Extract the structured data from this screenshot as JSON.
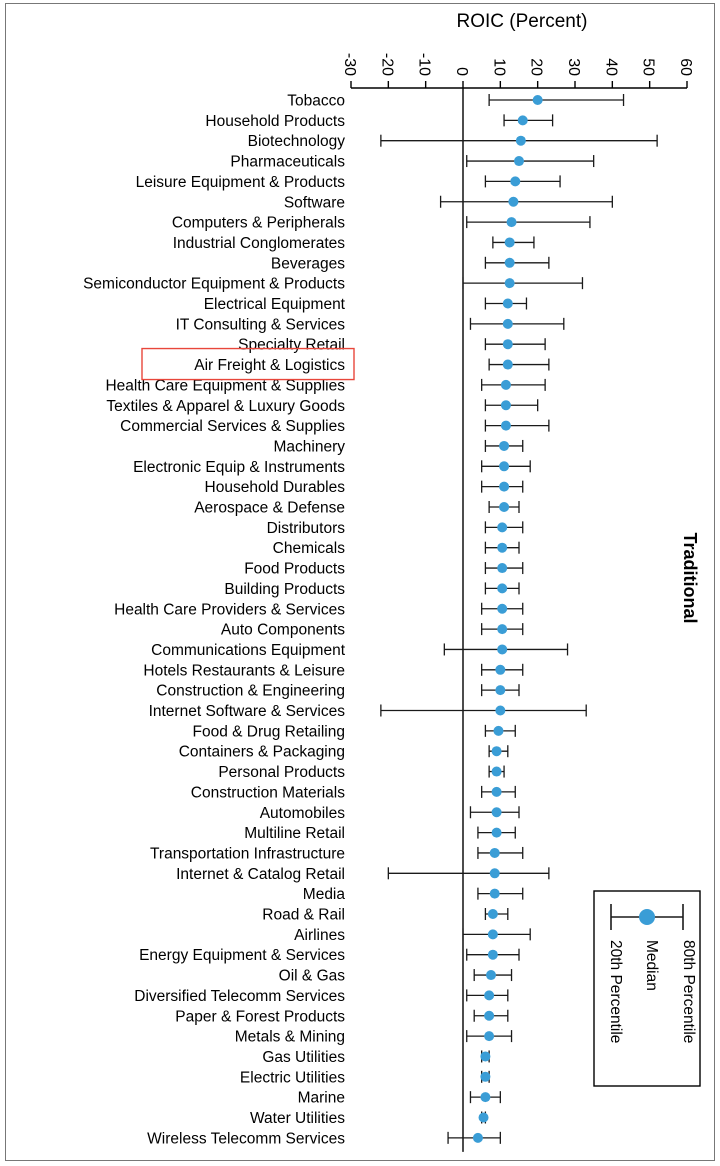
{
  "chart_data": {
    "type": "errorbar",
    "title": "ROIC (Percent)",
    "axis": {
      "min": -30,
      "max": 60,
      "ticks": [
        -30,
        -20,
        -10,
        0,
        10,
        20,
        30,
        40,
        50,
        60
      ]
    },
    "section_label": "Traditional",
    "highlight_category": "Air Freight & Logistics",
    "colors": {
      "marker": "#3a9dd6",
      "whisker": "#1a1a1a",
      "axis": "#000000",
      "highlight": "#e8463b"
    },
    "legend": {
      "upper": "80th Percentile",
      "middle": "Median",
      "lower": "20th Percentile"
    },
    "series": [
      {
        "category": "Tobacco",
        "p20": 7,
        "median": 20,
        "p80": 43
      },
      {
        "category": "Household Products",
        "p20": 11,
        "median": 16,
        "p80": 24
      },
      {
        "category": "Biotechnology",
        "p20": -22,
        "median": 15.5,
        "p80": 52
      },
      {
        "category": "Pharmaceuticals",
        "p20": 1,
        "median": 15,
        "p80": 35
      },
      {
        "category": "Leisure Equipment & Products",
        "p20": 6,
        "median": 14,
        "p80": 26
      },
      {
        "category": "Software",
        "p20": -6,
        "median": 13.5,
        "p80": 40
      },
      {
        "category": "Computers & Peripherals",
        "p20": 1,
        "median": 13,
        "p80": 34
      },
      {
        "category": "Industrial Conglomerates",
        "p20": 8,
        "median": 12.5,
        "p80": 19
      },
      {
        "category": "Beverages",
        "p20": 6,
        "median": 12.5,
        "p80": 23
      },
      {
        "category": "Semiconductor Equipment & Products",
        "p20": 0,
        "median": 12.5,
        "p80": 32
      },
      {
        "category": "Electrical Equipment",
        "p20": 6,
        "median": 12,
        "p80": 17
      },
      {
        "category": "IT Consulting & Services",
        "p20": 2,
        "median": 12,
        "p80": 27
      },
      {
        "category": "Specialty Retail",
        "p20": 6,
        "median": 12,
        "p80": 22
      },
      {
        "category": "Air Freight & Logistics",
        "p20": 7,
        "median": 12,
        "p80": 23
      },
      {
        "category": "Health Care Equipment & Supplies",
        "p20": 5,
        "median": 11.5,
        "p80": 22
      },
      {
        "category": "Textiles & Apparel & Luxury Goods",
        "p20": 6,
        "median": 11.5,
        "p80": 20
      },
      {
        "category": "Commercial Services & Supplies",
        "p20": 6,
        "median": 11.5,
        "p80": 23
      },
      {
        "category": "Machinery",
        "p20": 6,
        "median": 11,
        "p80": 16
      },
      {
        "category": "Electronic Equip & Instruments",
        "p20": 5,
        "median": 11,
        "p80": 18
      },
      {
        "category": "Household Durables",
        "p20": 5,
        "median": 11,
        "p80": 16
      },
      {
        "category": "Aerospace & Defense",
        "p20": 7,
        "median": 11,
        "p80": 15
      },
      {
        "category": "Distributors",
        "p20": 6,
        "median": 10.5,
        "p80": 16
      },
      {
        "category": "Chemicals",
        "p20": 6,
        "median": 10.5,
        "p80": 15
      },
      {
        "category": "Food Products",
        "p20": 6,
        "median": 10.5,
        "p80": 16
      },
      {
        "category": "Building Products",
        "p20": 6,
        "median": 10.5,
        "p80": 15
      },
      {
        "category": "Health Care Providers & Services",
        "p20": 5,
        "median": 10.5,
        "p80": 16
      },
      {
        "category": "Auto Components",
        "p20": 5,
        "median": 10.5,
        "p80": 16
      },
      {
        "category": "Communications Equipment",
        "p20": -5,
        "median": 10.5,
        "p80": 28
      },
      {
        "category": "Hotels Restaurants & Leisure",
        "p20": 5,
        "median": 10,
        "p80": 16
      },
      {
        "category": "Construction & Engineering",
        "p20": 5,
        "median": 10,
        "p80": 15
      },
      {
        "category": "Internet Software & Services",
        "p20": -22,
        "median": 10,
        "p80": 33
      },
      {
        "category": "Food & Drug Retailing",
        "p20": 6,
        "median": 9.5,
        "p80": 14
      },
      {
        "category": "Containers & Packaging",
        "p20": 7,
        "median": 9,
        "p80": 12
      },
      {
        "category": "Personal Products",
        "p20": 7,
        "median": 9,
        "p80": 11
      },
      {
        "category": "Construction Materials",
        "p20": 5,
        "median": 9,
        "p80": 14
      },
      {
        "category": "Automobiles",
        "p20": 2,
        "median": 9,
        "p80": 15
      },
      {
        "category": "Multiline Retail",
        "p20": 4,
        "median": 9,
        "p80": 14
      },
      {
        "category": "Transportation Infrastructure",
        "p20": 4,
        "median": 8.5,
        "p80": 16
      },
      {
        "category": "Internet & Catalog Retail",
        "p20": -20,
        "median": 8.5,
        "p80": 23
      },
      {
        "category": "Media",
        "p20": 4,
        "median": 8.5,
        "p80": 16
      },
      {
        "category": "Road & Rail",
        "p20": 6,
        "median": 8,
        "p80": 12
      },
      {
        "category": "Airlines",
        "p20": 0,
        "median": 8,
        "p80": 18
      },
      {
        "category": "Energy Equipment & Services",
        "p20": 1,
        "median": 8,
        "p80": 15
      },
      {
        "category": "Oil & Gas",
        "p20": 3,
        "median": 7.5,
        "p80": 13
      },
      {
        "category": "Diversified Telecomm Services",
        "p20": 1,
        "median": 7,
        "p80": 12
      },
      {
        "category": "Paper & Forest Products",
        "p20": 3,
        "median": 7,
        "p80": 12
      },
      {
        "category": "Metals & Mining",
        "p20": 1,
        "median": 7,
        "p80": 13
      },
      {
        "category": "Gas Utilities",
        "p20": 5,
        "median": 6,
        "p80": 7
      },
      {
        "category": "Electric Utilities",
        "p20": 5,
        "median": 6,
        "p80": 7
      },
      {
        "category": "Marine",
        "p20": 2,
        "median": 6,
        "p80": 10
      },
      {
        "category": "Water Utilities",
        "p20": 5,
        "median": 5.5,
        "p80": 6
      },
      {
        "category": "Wireless Telecomm Services",
        "p20": -4,
        "median": 4,
        "p80": 10
      }
    ]
  }
}
